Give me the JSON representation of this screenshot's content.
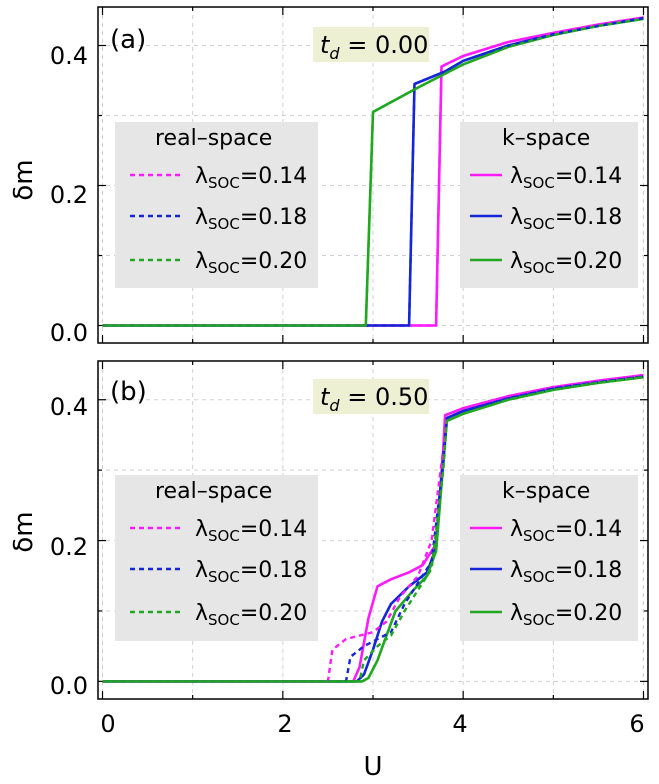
{
  "figure": {
    "xlabel": "U",
    "ylabel": "δm",
    "xticks": [
      "0",
      "2",
      "4",
      "6"
    ],
    "yticks": [
      "0.0",
      "0.2",
      "0.4"
    ]
  },
  "legend": {
    "real_title": "real–space",
    "k_title": "k–space",
    "lambda_symbol": "λ",
    "lambda_sub": "SOC",
    "entries": [
      {
        "value": "=0.14",
        "color": "#ff1aff"
      },
      {
        "value": "=0.18",
        "color": "#1426d6"
      },
      {
        "value": "=0.20",
        "color": "#20a820"
      }
    ]
  },
  "colors": {
    "magenta": "#ff1aff",
    "blue": "#1426d6",
    "green": "#20a820",
    "legend_bg": "#e6e6e6",
    "td_bg": "#eef0d4"
  },
  "chart_data": [
    {
      "type": "line",
      "panel": "(a)",
      "td_symbol": "t",
      "td_sub": "d",
      "td_value": " = 0.00",
      "xlim": [
        -0.05,
        6.05
      ],
      "ylim": [
        -0.025,
        0.455
      ],
      "series": [
        {
          "name": "k-space λSOC=0.14",
          "color": "#ff1aff",
          "dash": false,
          "x": [
            0,
            3.7,
            3.76,
            4.0,
            4.5,
            5.0,
            5.5,
            6.0
          ],
          "y": [
            0,
            0,
            0.37,
            0.385,
            0.405,
            0.418,
            0.43,
            0.44
          ]
        },
        {
          "name": "k-space λSOC=0.18",
          "color": "#1426d6",
          "dash": false,
          "x": [
            0,
            3.4,
            3.46,
            3.8,
            4.0,
            4.5,
            5.0,
            5.5,
            6.0
          ],
          "y": [
            0,
            0,
            0.345,
            0.363,
            0.378,
            0.4,
            0.416,
            0.428,
            0.439
          ]
        },
        {
          "name": "k-space λSOC=0.20",
          "color": "#20a820",
          "dash": false,
          "x": [
            0,
            2.92,
            3.0,
            3.5,
            4.0,
            4.5,
            5.0,
            5.5,
            6.0
          ],
          "y": [
            0,
            0,
            0.305,
            0.34,
            0.373,
            0.398,
            0.415,
            0.428,
            0.438
          ]
        },
        {
          "name": "real-space λSOC=0.14",
          "color": "#ff1aff",
          "dash": true,
          "x": [
            0,
            3.7,
            3.76,
            4.0,
            4.5,
            5.0,
            5.5,
            6.0
          ],
          "y": [
            0,
            0,
            0.37,
            0.385,
            0.405,
            0.418,
            0.43,
            0.44
          ]
        },
        {
          "name": "real-space λSOC=0.18",
          "color": "#1426d6",
          "dash": true,
          "x": [
            0,
            3.4,
            3.46,
            3.8,
            4.0,
            4.5,
            5.0,
            5.5,
            6.0
          ],
          "y": [
            0,
            0,
            0.345,
            0.363,
            0.378,
            0.4,
            0.416,
            0.428,
            0.439
          ]
        },
        {
          "name": "real-space λSOC=0.20",
          "color": "#20a820",
          "dash": true,
          "x": [
            0,
            2.92,
            3.0,
            3.5,
            4.0,
            4.5,
            5.0,
            5.5,
            6.0
          ],
          "y": [
            0,
            0,
            0.305,
            0.34,
            0.373,
            0.398,
            0.415,
            0.428,
            0.438
          ]
        }
      ]
    },
    {
      "type": "line",
      "panel": "(b)",
      "td_symbol": "t",
      "td_sub": "d",
      "td_value": " = 0.50",
      "xlim": [
        -0.05,
        6.05
      ],
      "ylim": [
        -0.025,
        0.455
      ],
      "series": [
        {
          "name": "k-space λSOC=0.14",
          "color": "#ff1aff",
          "dash": false,
          "x": [
            0,
            2.78,
            2.85,
            2.95,
            3.05,
            3.2,
            3.4,
            3.55,
            3.7,
            3.78,
            3.8,
            4.0,
            4.5,
            5.0,
            5.5,
            6.0
          ],
          "y": [
            0,
            0,
            0.02,
            0.09,
            0.135,
            0.145,
            0.155,
            0.165,
            0.195,
            0.33,
            0.378,
            0.388,
            0.405,
            0.418,
            0.427,
            0.435
          ]
        },
        {
          "name": "k-space λSOC=0.18",
          "color": "#1426d6",
          "dash": false,
          "x": [
            0,
            2.82,
            2.9,
            3.0,
            3.1,
            3.2,
            3.4,
            3.6,
            3.7,
            3.78,
            3.82,
            4.0,
            4.5,
            5.0,
            5.5,
            6.0
          ],
          "y": [
            0,
            0,
            0.01,
            0.045,
            0.085,
            0.11,
            0.135,
            0.155,
            0.19,
            0.32,
            0.374,
            0.384,
            0.402,
            0.416,
            0.425,
            0.433
          ]
        },
        {
          "name": "k-space λSOC=0.20",
          "color": "#20a820",
          "dash": false,
          "x": [
            0,
            2.88,
            2.95,
            3.05,
            3.15,
            3.25,
            3.45,
            3.6,
            3.7,
            3.78,
            3.82,
            4.0,
            4.5,
            5.0,
            5.5,
            6.0
          ],
          "y": [
            0,
            0,
            0.005,
            0.03,
            0.065,
            0.1,
            0.13,
            0.15,
            0.185,
            0.31,
            0.37,
            0.38,
            0.4,
            0.414,
            0.424,
            0.432
          ]
        },
        {
          "name": "real-space λSOC=0.14",
          "color": "#ff1aff",
          "dash": true,
          "x": [
            0,
            2.5,
            2.55,
            2.7,
            2.85,
            3.0,
            3.15,
            3.3,
            3.5,
            3.65,
            3.78,
            3.8,
            4.0,
            4.5,
            5.0,
            5.5,
            6.0
          ],
          "y": [
            0,
            0,
            0.045,
            0.06,
            0.065,
            0.07,
            0.085,
            0.12,
            0.15,
            0.2,
            0.33,
            0.378,
            0.388,
            0.405,
            0.418,
            0.427,
            0.435
          ]
        },
        {
          "name": "real-space λSOC=0.18",
          "color": "#1426d6",
          "dash": true,
          "x": [
            0,
            2.7,
            2.75,
            2.9,
            3.05,
            3.2,
            3.35,
            3.5,
            3.65,
            3.78,
            3.82,
            4.0,
            4.5,
            5.0,
            5.5,
            6.0
          ],
          "y": [
            0,
            0,
            0.035,
            0.05,
            0.06,
            0.07,
            0.11,
            0.14,
            0.17,
            0.31,
            0.374,
            0.384,
            0.402,
            0.416,
            0.425,
            0.433
          ]
        },
        {
          "name": "real-space λSOC=0.20",
          "color": "#20a820",
          "dash": true,
          "x": [
            0,
            2.85,
            2.9,
            3.05,
            3.2,
            3.35,
            3.5,
            3.65,
            3.78,
            3.82,
            4.0,
            4.5,
            5.0,
            5.5,
            6.0
          ],
          "y": [
            0,
            0,
            0.03,
            0.05,
            0.065,
            0.1,
            0.13,
            0.16,
            0.3,
            0.37,
            0.38,
            0.4,
            0.414,
            0.424,
            0.432
          ]
        }
      ]
    }
  ]
}
